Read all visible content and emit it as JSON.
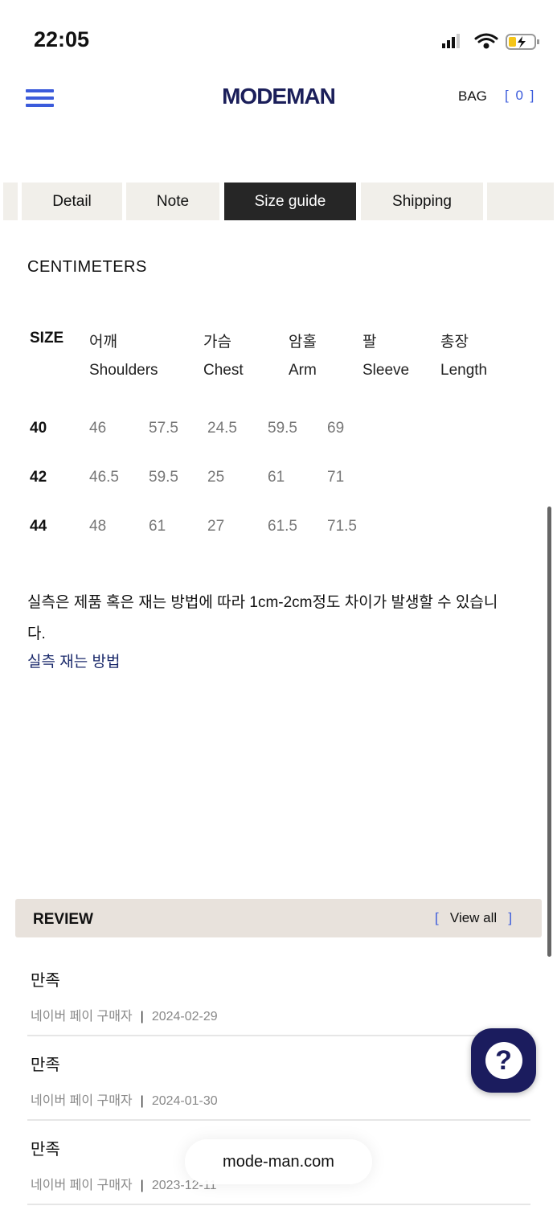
{
  "status": {
    "time": "22:05"
  },
  "header": {
    "logo": "MODEMAN",
    "bag_label": "BAG",
    "bag_count": "[ 0 ]"
  },
  "tabs": [
    {
      "label": "Detail"
    },
    {
      "label": "Note"
    },
    {
      "label": "Size guide",
      "active": true
    },
    {
      "label": "Shipping"
    }
  ],
  "size_guide": {
    "unit": "CENTIMETERS",
    "columns": [
      {
        "ko": "",
        "en": "SIZE"
      },
      {
        "ko": "어깨",
        "en": "Shoulders"
      },
      {
        "ko": "가슴",
        "en": "Chest"
      },
      {
        "ko": "암홀",
        "en": "Arm"
      },
      {
        "ko": "팔",
        "en": "Sleeve"
      },
      {
        "ko": "총장",
        "en": "Length"
      }
    ],
    "rows": [
      {
        "size": "40",
        "values": [
          "46",
          "57.5",
          "24.5",
          "59.5",
          "69"
        ]
      },
      {
        "size": "42",
        "values": [
          "46.5",
          "59.5",
          "25",
          "61",
          "71"
        ]
      },
      {
        "size": "44",
        "values": [
          "48",
          "61",
          "27",
          "61.5",
          "71.5"
        ]
      }
    ],
    "note": "실측은 제품 혹은 재는 방법에 따라 1cm-2cm정도 차이가 발생할 수 있습니다.",
    "howto_link": "실측 재는 방법"
  },
  "review": {
    "title": "REVIEW",
    "view_all": "View all",
    "bracket_open": "[",
    "bracket_close": "]",
    "items": [
      {
        "title": "만족",
        "author": "네이버 페이 구매자",
        "date": "2024-02-29"
      },
      {
        "title": "만족",
        "author": "네이버 페이 구매자",
        "date": "2024-01-30"
      },
      {
        "title": "만족",
        "author": "네이버 페이 구매자",
        "date": "2023-12-11"
      }
    ]
  },
  "help_button": "?",
  "browser": {
    "url": "mode-man.com"
  },
  "colors": {
    "accent": "#3b5bdb",
    "brand": "#1b1f5a",
    "active_tab": "#262626",
    "review_bar": "#e8e2dc"
  }
}
